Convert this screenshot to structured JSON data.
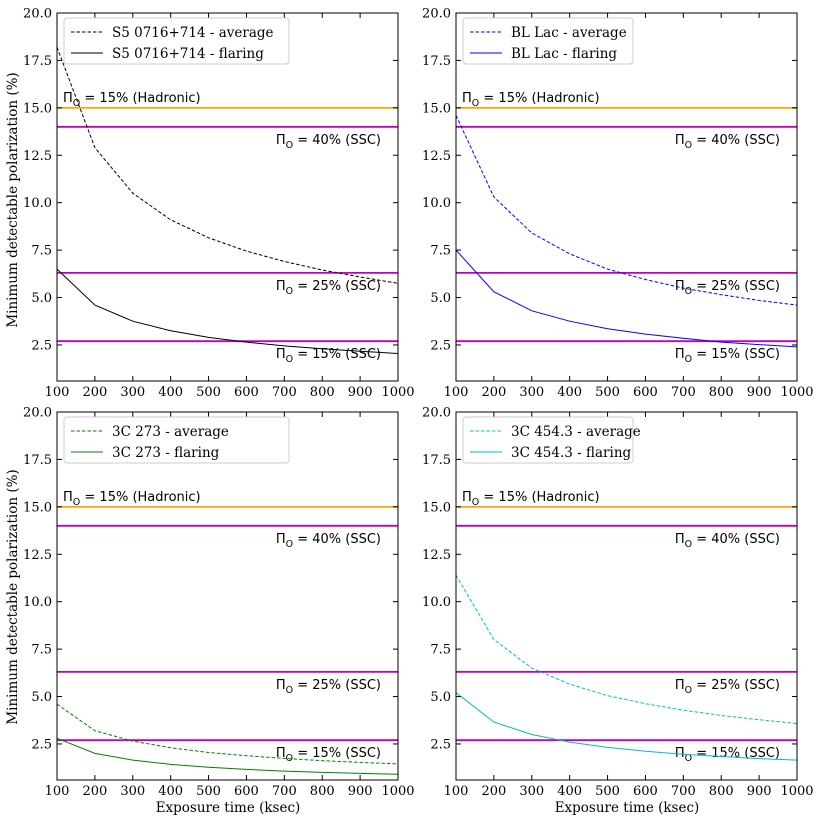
{
  "figure": {
    "xlabel": "Exposure time (ksec)",
    "ylabel": "Minimum detectable polarization (%)"
  },
  "colors": {
    "hadronic": "#ffa500",
    "ssc": "#bf00bf",
    "s5": "#000000",
    "bllac": "#0000ff",
    "3c273": "#008000",
    "3c454": "#00bfbf"
  },
  "chart_data": [
    {
      "type": "line",
      "panel": "top-left",
      "color_key": "s5",
      "x": [
        100,
        200,
        300,
        400,
        500,
        600,
        700,
        800,
        900,
        1000
      ],
      "xlim": [
        100,
        1000
      ],
      "ylim": [
        0.6,
        20.0
      ],
      "xticks": [
        "100",
        "200",
        "300",
        "400",
        "500",
        "600",
        "700",
        "800",
        "900",
        "1000"
      ],
      "yticks": [
        "2.5",
        "5.0",
        "7.5",
        "10.0",
        "12.5",
        "15.0",
        "17.5",
        "20.0"
      ],
      "show_xlabel": false,
      "show_ylabel": true,
      "legend_position": "top-left",
      "series": [
        {
          "name": "S5 0716+714 - average",
          "style": "dashed",
          "values": [
            18.2,
            12.9,
            10.5,
            9.1,
            8.15,
            7.45,
            6.9,
            6.45,
            6.08,
            5.75
          ]
        },
        {
          "name": "S5 0716+714 - flaring",
          "style": "solid",
          "values": [
            6.5,
            4.6,
            3.75,
            3.25,
            2.9,
            2.65,
            2.45,
            2.3,
            2.17,
            2.05
          ]
        }
      ],
      "reference_lines": [
        {
          "value": 15.0,
          "label": "Π",
          "sub": "O",
          "rest": " = 15% (Hadronic)",
          "color_key": "hadronic",
          "label_pos": "left"
        },
        {
          "value": 14.0,
          "label": "Π",
          "sub": "O",
          "rest": " = 40% (SSC)",
          "color_key": "ssc",
          "label_pos": "right"
        },
        {
          "value": 6.3,
          "label": "Π",
          "sub": "O",
          "rest": " = 25% (SSC)",
          "color_key": "ssc",
          "label_pos": "right"
        },
        {
          "value": 2.7,
          "label": "Π",
          "sub": "O",
          "rest": " = 15% (SSC)",
          "color_key": "ssc",
          "label_pos": "right"
        }
      ]
    },
    {
      "type": "line",
      "panel": "top-right",
      "color_key": "bllac",
      "x": [
        100,
        200,
        300,
        400,
        500,
        600,
        700,
        800,
        900,
        1000
      ],
      "xlim": [
        100,
        1000
      ],
      "ylim": [
        0.6,
        20.0
      ],
      "xticks": [
        "100",
        "200",
        "300",
        "400",
        "500",
        "600",
        "700",
        "800",
        "900",
        "1000"
      ],
      "yticks": [
        "2.5",
        "5.0",
        "7.5",
        "10.0",
        "12.5",
        "15.0",
        "17.5",
        "20.0"
      ],
      "show_xlabel": false,
      "show_ylabel": false,
      "legend_position": "top-left",
      "series": [
        {
          "name": "BL Lac - average",
          "style": "dashed",
          "values": [
            14.6,
            10.3,
            8.4,
            7.3,
            6.5,
            5.95,
            5.5,
            5.15,
            4.85,
            4.6
          ]
        },
        {
          "name": "BL Lac - flaring",
          "style": "solid",
          "values": [
            7.5,
            5.3,
            4.3,
            3.75,
            3.35,
            3.07,
            2.85,
            2.65,
            2.52,
            2.4
          ]
        }
      ],
      "reference_lines": [
        {
          "value": 15.0,
          "label": "Π",
          "sub": "O",
          "rest": " = 15% (Hadronic)",
          "color_key": "hadronic",
          "label_pos": "left"
        },
        {
          "value": 14.0,
          "label": "Π",
          "sub": "O",
          "rest": " = 40% (SSC)",
          "color_key": "ssc",
          "label_pos": "right"
        },
        {
          "value": 6.3,
          "label": "Π",
          "sub": "O",
          "rest": " = 25% (SSC)",
          "color_key": "ssc",
          "label_pos": "right"
        },
        {
          "value": 2.7,
          "label": "Π",
          "sub": "O",
          "rest": " = 15% (SSC)",
          "color_key": "ssc",
          "label_pos": "right"
        }
      ]
    },
    {
      "type": "line",
      "panel": "bottom-left",
      "color_key": "3c273",
      "x": [
        100,
        200,
        300,
        400,
        500,
        600,
        700,
        800,
        900,
        1000
      ],
      "xlim": [
        100,
        1000
      ],
      "ylim": [
        0.6,
        20.0
      ],
      "xticks": [
        "100",
        "200",
        "300",
        "400",
        "500",
        "600",
        "700",
        "800",
        "900",
        "1000"
      ],
      "yticks": [
        "2.5",
        "5.0",
        "7.5",
        "10.0",
        "12.5",
        "15.0",
        "17.5",
        "20.0"
      ],
      "show_xlabel": true,
      "show_ylabel": true,
      "legend_position": "top-left",
      "series": [
        {
          "name": "3C 273 - average",
          "style": "dashed",
          "values": [
            4.6,
            3.2,
            2.65,
            2.3,
            2.05,
            1.88,
            1.74,
            1.62,
            1.53,
            1.45
          ]
        },
        {
          "name": "3C 273 - flaring",
          "style": "solid",
          "values": [
            2.8,
            2.0,
            1.65,
            1.42,
            1.27,
            1.16,
            1.07,
            1.0,
            0.95,
            0.9
          ]
        }
      ],
      "reference_lines": [
        {
          "value": 15.0,
          "label": "Π",
          "sub": "O",
          "rest": " = 15% (Hadronic)",
          "color_key": "hadronic",
          "label_pos": "left"
        },
        {
          "value": 14.0,
          "label": "Π",
          "sub": "O",
          "rest": " = 40% (SSC)",
          "color_key": "ssc",
          "label_pos": "right"
        },
        {
          "value": 6.3,
          "label": "Π",
          "sub": "O",
          "rest": " = 25% (SSC)",
          "color_key": "ssc",
          "label_pos": "right"
        },
        {
          "value": 2.7,
          "label": "Π",
          "sub": "O",
          "rest": " = 15% (SSC)",
          "color_key": "ssc",
          "label_pos": "right"
        }
      ]
    },
    {
      "type": "line",
      "panel": "bottom-right",
      "color_key": "3c454",
      "x": [
        100,
        200,
        300,
        400,
        500,
        600,
        700,
        800,
        900,
        1000
      ],
      "xlim": [
        100,
        1000
      ],
      "ylim": [
        0.6,
        20.0
      ],
      "xticks": [
        "100",
        "200",
        "300",
        "400",
        "500",
        "600",
        "700",
        "800",
        "900",
        "1000"
      ],
      "yticks": [
        "2.5",
        "5.0",
        "7.5",
        "10.0",
        "12.5",
        "15.0",
        "17.5",
        "20.0"
      ],
      "show_xlabel": true,
      "show_ylabel": false,
      "legend_position": "top-left",
      "series": [
        {
          "name": "3C 454.3 - average",
          "style": "dashed",
          "values": [
            11.4,
            8.0,
            6.5,
            5.65,
            5.05,
            4.62,
            4.28,
            4.0,
            3.78,
            3.58
          ]
        },
        {
          "name": "3C 454.3 - flaring",
          "style": "solid",
          "values": [
            5.2,
            3.65,
            3.0,
            2.6,
            2.32,
            2.12,
            1.96,
            1.84,
            1.73,
            1.65
          ]
        }
      ],
      "reference_lines": [
        {
          "value": 15.0,
          "label": "Π",
          "sub": "O",
          "rest": " = 15% (Hadronic)",
          "color_key": "hadronic",
          "label_pos": "left"
        },
        {
          "value": 14.0,
          "label": "Π",
          "sub": "O",
          "rest": " = 40% (SSC)",
          "color_key": "ssc",
          "label_pos": "right"
        },
        {
          "value": 6.3,
          "label": "Π",
          "sub": "O",
          "rest": " = 25% (SSC)",
          "color_key": "ssc",
          "label_pos": "right"
        },
        {
          "value": 2.7,
          "label": "Π",
          "sub": "O",
          "rest": " = 15% (SSC)",
          "color_key": "ssc",
          "label_pos": "right"
        }
      ]
    }
  ]
}
